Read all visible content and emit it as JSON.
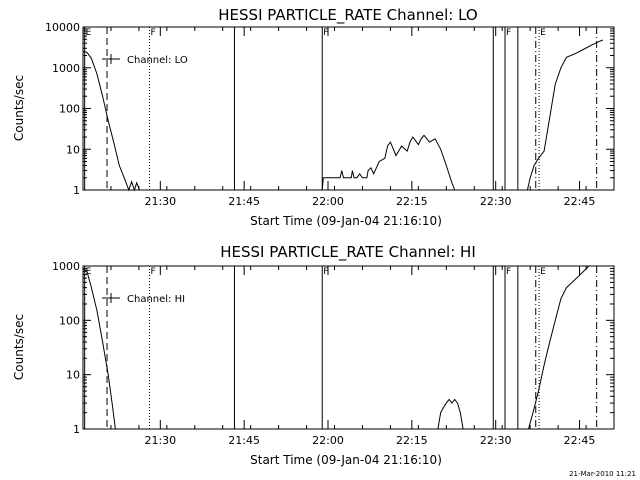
{
  "chart_data": [
    {
      "type": "line",
      "title": "HESSI PARTICLE_RATE Channel: LO",
      "xlabel": "Start Time (09-Jan-04 21:16:10)",
      "ylabel": "Counts/sec",
      "y_scale": "log",
      "ylim": [
        1,
        10000
      ],
      "xlim_minutes_from_start": [
        0,
        95
      ],
      "x_ticks": [
        "21:30",
        "21:45",
        "22:00",
        "22:15",
        "22:30",
        "22:45"
      ],
      "y_ticks": [
        "1",
        "10",
        "100",
        "1000",
        "10000"
      ],
      "legend": {
        "label": "Channel: LO",
        "placement": "top-left"
      },
      "markers": [
        {
          "label": "E",
          "t": 0.3,
          "style": "solid"
        },
        {
          "label": "",
          "t": 4.3,
          "style": "dashed"
        },
        {
          "label": "F",
          "t": 11.9,
          "style": "dotted"
        },
        {
          "label": "",
          "t": 27.1,
          "style": "solid"
        },
        {
          "label": "F",
          "t": 42.8,
          "style": "solid"
        },
        {
          "label": "",
          "t": 73.4,
          "style": "solid"
        },
        {
          "label": "F",
          "t": 75.5,
          "style": "solid"
        },
        {
          "label": "",
          "t": 77.8,
          "style": "solid"
        },
        {
          "label": "",
          "t": 81.0,
          "style": "dashdot"
        },
        {
          "label": "E",
          "t": 81.6,
          "style": "dotted"
        },
        {
          "label": "",
          "t": 91.9,
          "style": "dashdot"
        }
      ],
      "series": [
        {
          "segments": [
            [
              [
                0,
                2500
              ],
              [
                0.7,
                2400
              ],
              [
                1.5,
                1700
              ],
              [
                2.5,
                700
              ],
              [
                3.5,
                200
              ],
              [
                4.5,
                50
              ],
              [
                5.5,
                15
              ],
              [
                6.5,
                4
              ],
              [
                7.5,
                1.8
              ],
              [
                8.2,
                1
              ],
              [
                8.7,
                1.6
              ],
              [
                9.2,
                1
              ],
              [
                9.6,
                1.5
              ],
              [
                10.1,
                1
              ]
            ],
            [
              [
                42.8,
                1
              ],
              [
                43,
                2
              ],
              [
                46,
                2
              ],
              [
                46.3,
                3
              ],
              [
                46.6,
                2
              ],
              [
                48,
                2
              ],
              [
                48.2,
                3
              ],
              [
                48.5,
                2
              ],
              [
                49,
                2
              ],
              [
                49.5,
                2.5
              ],
              [
                50,
                2
              ],
              [
                50.8,
                2
              ],
              [
                51,
                3
              ],
              [
                51.5,
                3.5
              ],
              [
                52,
                2.5
              ],
              [
                53,
                5
              ],
              [
                54,
                6
              ],
              [
                54.5,
                12
              ],
              [
                55,
                15
              ],
              [
                56,
                7
              ],
              [
                57,
                12
              ],
              [
                58,
                9
              ],
              [
                58.5,
                15
              ],
              [
                59,
                20
              ],
              [
                60,
                13
              ],
              [
                60.5,
                18
              ],
              [
                61,
                22
              ],
              [
                62,
                15
              ],
              [
                63,
                18
              ],
              [
                64,
                10
              ],
              [
                65,
                4
              ],
              [
                66,
                1.5
              ],
              [
                66.5,
                1
              ]
            ],
            [
              [
                79.5,
                1
              ],
              [
                80,
                2
              ],
              [
                80.7,
                4
              ],
              [
                81.5,
                6
              ],
              [
                82.5,
                9
              ],
              [
                83.5,
                60
              ],
              [
                84.5,
                400
              ],
              [
                85.5,
                1000
              ],
              [
                86.5,
                1800
              ],
              [
                88,
                2200
              ],
              [
                89.5,
                2800
              ],
              [
                91,
                3600
              ],
              [
                92.5,
                4500
              ],
              [
                93,
                4800
              ]
            ]
          ]
        }
      ]
    },
    {
      "type": "line",
      "title": "HESSI PARTICLE_RATE Channel: HI",
      "xlabel": "Start Time (09-Jan-04 21:16:10)",
      "ylabel": "Counts/sec",
      "y_scale": "log",
      "ylim": [
        1,
        1000
      ],
      "xlim_minutes_from_start": [
        0,
        95
      ],
      "x_ticks": [
        "21:30",
        "21:45",
        "22:00",
        "22:15",
        "22:30",
        "22:45"
      ],
      "y_ticks": [
        "1",
        "10",
        "100",
        "1000"
      ],
      "legend": {
        "label": "Channel: HI",
        "placement": "top-left"
      },
      "markers": [
        {
          "label": "E",
          "t": 0.3,
          "style": "solid"
        },
        {
          "label": "",
          "t": 4.3,
          "style": "dashed"
        },
        {
          "label": "F",
          "t": 11.9,
          "style": "dotted"
        },
        {
          "label": "",
          "t": 27.1,
          "style": "solid"
        },
        {
          "label": "F",
          "t": 42.8,
          "style": "solid"
        },
        {
          "label": "",
          "t": 73.4,
          "style": "solid"
        },
        {
          "label": "F",
          "t": 75.5,
          "style": "solid"
        },
        {
          "label": "",
          "t": 77.8,
          "style": "solid"
        },
        {
          "label": "",
          "t": 81.0,
          "style": "dashdot"
        },
        {
          "label": "E",
          "t": 81.6,
          "style": "dotted"
        },
        {
          "label": "",
          "t": 91.9,
          "style": "dashdot"
        }
      ],
      "series": [
        {
          "segments": [
            [
              [
                0,
                900
              ],
              [
                0.7,
                800
              ],
              [
                1.5,
                400
              ],
              [
                2.5,
                150
              ],
              [
                3.5,
                40
              ],
              [
                4.5,
                10
              ],
              [
                5.2,
                3
              ],
              [
                5.8,
                1
              ]
            ],
            [
              [
                63.5,
                1
              ],
              [
                64,
                2
              ],
              [
                64.5,
                2.5
              ],
              [
                65,
                3
              ],
              [
                65.5,
                3.5
              ],
              [
                66,
                3
              ],
              [
                66.5,
                3.5
              ],
              [
                67,
                3
              ],
              [
                67.5,
                2
              ],
              [
                68,
                1
              ]
            ],
            [
              [
                79.7,
                1
              ],
              [
                80.5,
                2
              ],
              [
                81.5,
                5
              ],
              [
                82.5,
                15
              ],
              [
                83.5,
                40
              ],
              [
                84.5,
                100
              ],
              [
                85.5,
                250
              ],
              [
                86.5,
                400
              ],
              [
                87.5,
                500
              ],
              [
                89,
                700
              ],
              [
                90.5,
                1000
              ],
              [
                91.5,
                1100
              ],
              [
                92.5,
                1000
              ]
            ]
          ]
        }
      ]
    }
  ],
  "timestamp": "21-Mar-2010 11:21"
}
